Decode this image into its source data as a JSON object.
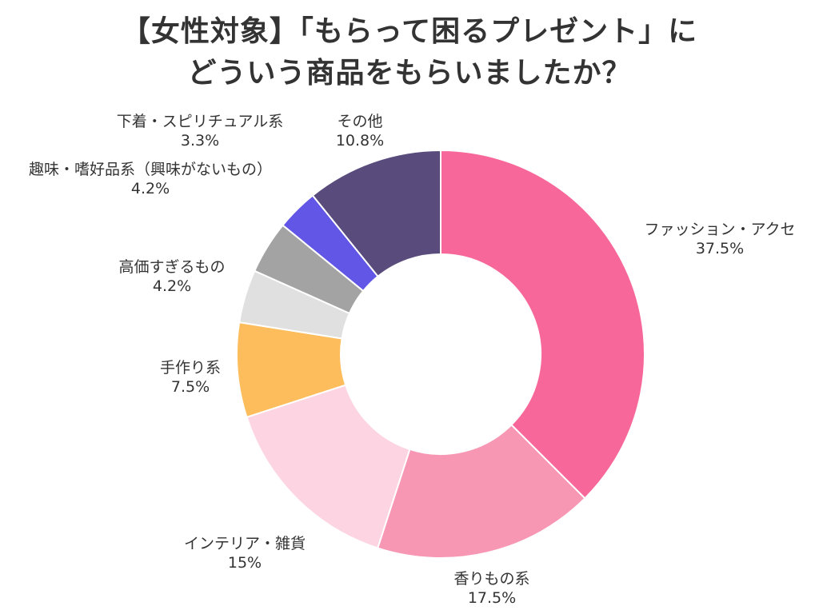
{
  "title": {
    "line1": "【女性対象】「もらって困るプレゼント」に",
    "line2": "どういう商品をもらいましたか？"
  },
  "colors": {
    "background": "#ffffff",
    "text": "#333333",
    "title": "#333333"
  },
  "chart_data": {
    "type": "pie",
    "donut": true,
    "start": "top, clockwise",
    "title": "【女性対象】「もらって困るプレゼント」に どういう商品をもらいましたか？",
    "slices": [
      {
        "label": "ファッション・アクセ",
        "value": 37.5,
        "display": "37.5%",
        "color": "#f7679a"
      },
      {
        "label": "香りもの系",
        "value": 17.5,
        "display": "17.5%",
        "color": "#f797b4"
      },
      {
        "label": "インテリア・雑貨",
        "value": 15,
        "display": "15%",
        "color": "#fdd4e2"
      },
      {
        "label": "手作り系",
        "value": 7.5,
        "display": "7.5%",
        "color": "#fdbd5c"
      },
      {
        "label": "高価すぎるもの",
        "value": 4.2,
        "display": "4.2%",
        "color": "#e0e0e0"
      },
      {
        "label": "趣味・嗜好品系（興味がないもの）",
        "value": 4.2,
        "display": "4.2%",
        "color": "#a3a3a3"
      },
      {
        "label": "下着・スピリチュアル系",
        "value": 3.3,
        "display": "3.3%",
        "color": "#6156e6"
      },
      {
        "label": "その他",
        "value": 10.8,
        "display": "10.8%",
        "color": "#594c7d"
      }
    ]
  }
}
